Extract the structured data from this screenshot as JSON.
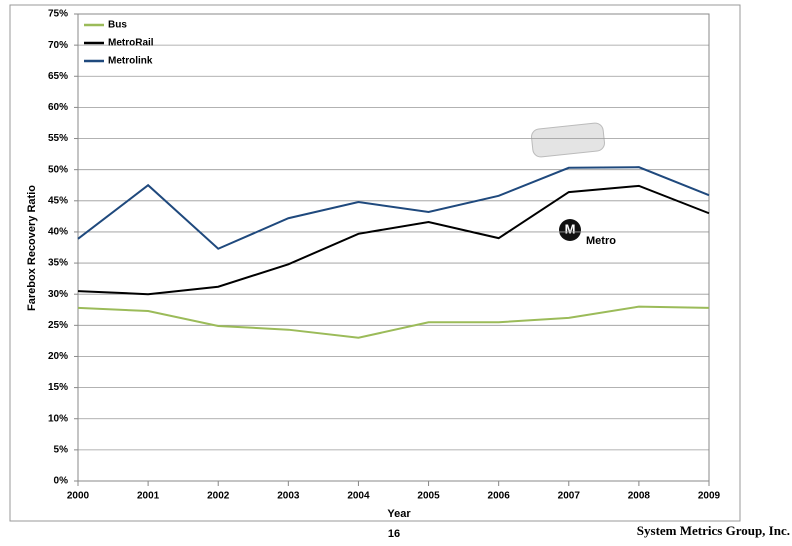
{
  "chart_data": {
    "type": "line",
    "x_label": "Year",
    "y_label": "Farebox Recovery Ratio",
    "categories": [
      "2000",
      "2001",
      "2002",
      "2003",
      "2004",
      "2005",
      "2006",
      "2007",
      "2008",
      "2009"
    ],
    "series": [
      {
        "name": "Bus",
        "color": "#9bbb59",
        "values": [
          27.8,
          27.3,
          24.9,
          24.3,
          23.0,
          25.5,
          25.5,
          26.2,
          28.0,
          27.8
        ]
      },
      {
        "name": "MetroRail",
        "color": "#000000",
        "values": [
          30.5,
          30.0,
          31.2,
          34.8,
          39.7,
          41.6,
          39.0,
          46.4,
          47.4,
          43.0
        ]
      },
      {
        "name": "Metrolink",
        "color": "#1f497d",
        "values": [
          38.9,
          47.5,
          37.3,
          42.2,
          44.8,
          43.2,
          45.8,
          50.3,
          50.4,
          45.9
        ]
      }
    ],
    "ylim": [
      0,
      75
    ],
    "yticks": [
      {
        "value": 0,
        "label": "0%"
      },
      {
        "value": 5,
        "label": "5%"
      },
      {
        "value": 10,
        "label": "10%"
      },
      {
        "value": 15,
        "label": "15%"
      },
      {
        "value": 20,
        "label": "20%"
      },
      {
        "value": 25,
        "label": "25%"
      },
      {
        "value": 30,
        "label": "30%"
      },
      {
        "value": 35,
        "label": "35%"
      },
      {
        "value": 40,
        "label": "40%"
      },
      {
        "value": 45,
        "label": "45%"
      },
      {
        "value": 50,
        "label": "50%"
      },
      {
        "value": 55,
        "label": "55%"
      },
      {
        "value": 60,
        "label": "60%"
      },
      {
        "value": 65,
        "label": "65%"
      },
      {
        "value": 70,
        "label": "70%"
      },
      {
        "value": 75,
        "label": "75%"
      }
    ],
    "grid": true,
    "legend": "top-left",
    "logo_letter": "M",
    "logo_text": "Metro"
  },
  "page_number": "16",
  "footer": "System Metrics Group, Inc."
}
